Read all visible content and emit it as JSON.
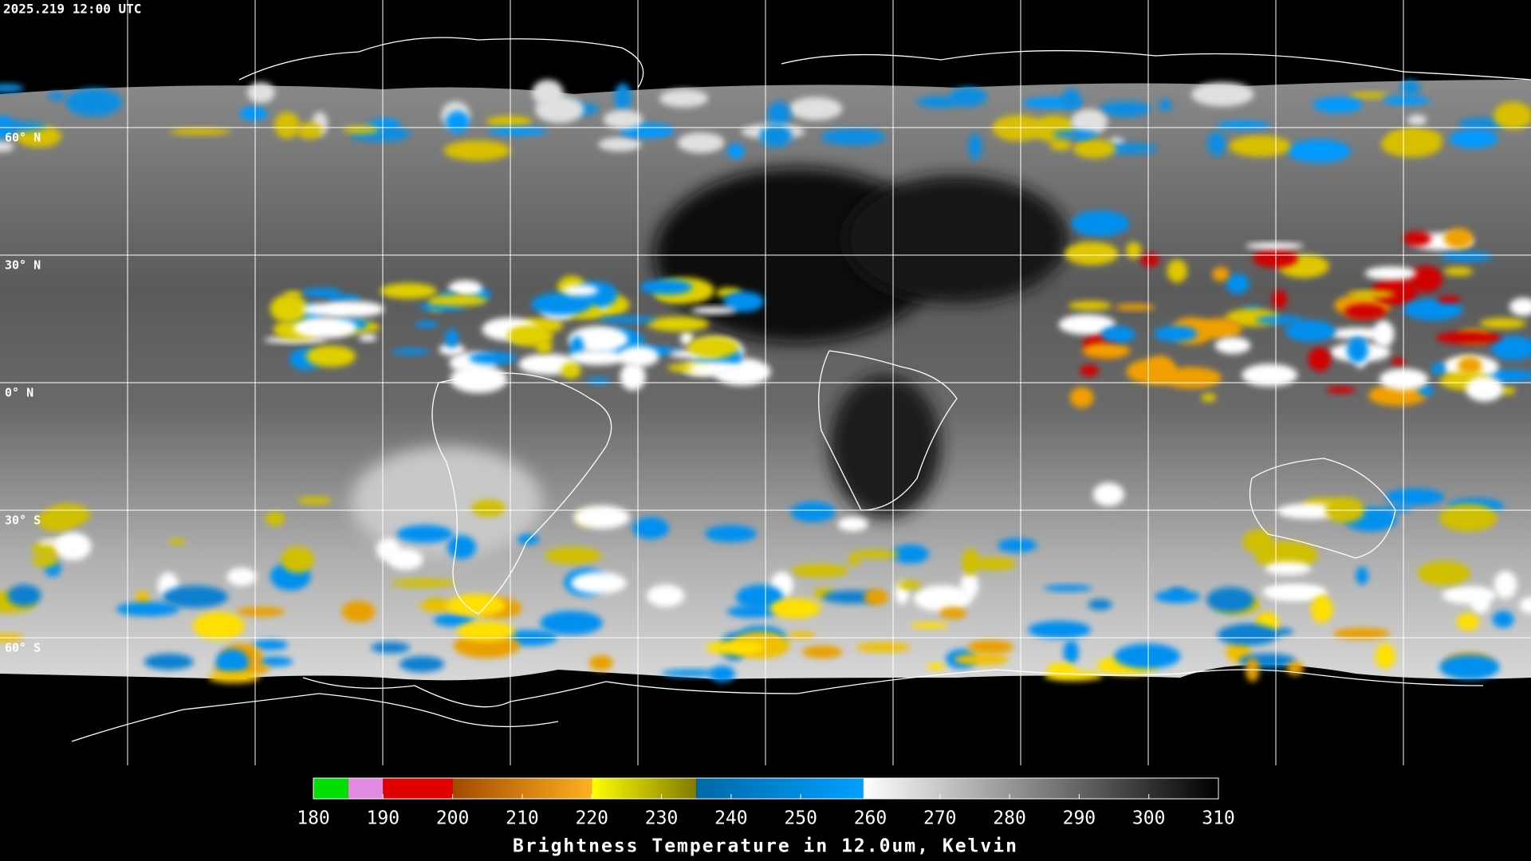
{
  "header": {
    "timestamp": "2025.219 12:00 UTC"
  },
  "map": {
    "xlim": [
      -180,
      180
    ],
    "ylim": [
      90,
      -90
    ],
    "lat_lines": [
      {
        "value": 60,
        "label": "60° N"
      },
      {
        "value": 30,
        "label": "30° N"
      },
      {
        "value": 0,
        "label": "0° N"
      },
      {
        "value": -30,
        "label": "30° S"
      },
      {
        "value": -60,
        "label": "60° S"
      }
    ],
    "lon_lines": [
      -150,
      -120,
      -90,
      -60,
      -30,
      0,
      30,
      60,
      90,
      120,
      150
    ],
    "grid_color": "#ffffff",
    "background": "#000000"
  },
  "colorbar": {
    "title": "Brightness Temperature in 12.0um, Kelvin",
    "range": [
      180,
      310
    ],
    "ticks": [
      180,
      190,
      200,
      210,
      220,
      230,
      240,
      250,
      260,
      270,
      280,
      290,
      300,
      310
    ],
    "segments": [
      {
        "from": 180,
        "to": 185,
        "colors": [
          "#00dd00",
          "#00dd00"
        ]
      },
      {
        "from": 185,
        "to": 190,
        "colors": [
          "#e08ae0",
          "#e08ae0"
        ]
      },
      {
        "from": 190,
        "to": 200,
        "colors": [
          "#e00000",
          "#e00000"
        ]
      },
      {
        "from": 200,
        "to": 220,
        "colors": [
          "#a04a00",
          "#ffb020"
        ]
      },
      {
        "from": 220,
        "to": 235,
        "colors": [
          "#ffff00",
          "#807a00"
        ]
      },
      {
        "from": 235,
        "to": 259,
        "colors": [
          "#0068a8",
          "#00a0ff"
        ]
      },
      {
        "from": 259,
        "to": 310,
        "colors": [
          "#ffffff",
          "#000000"
        ]
      }
    ]
  }
}
